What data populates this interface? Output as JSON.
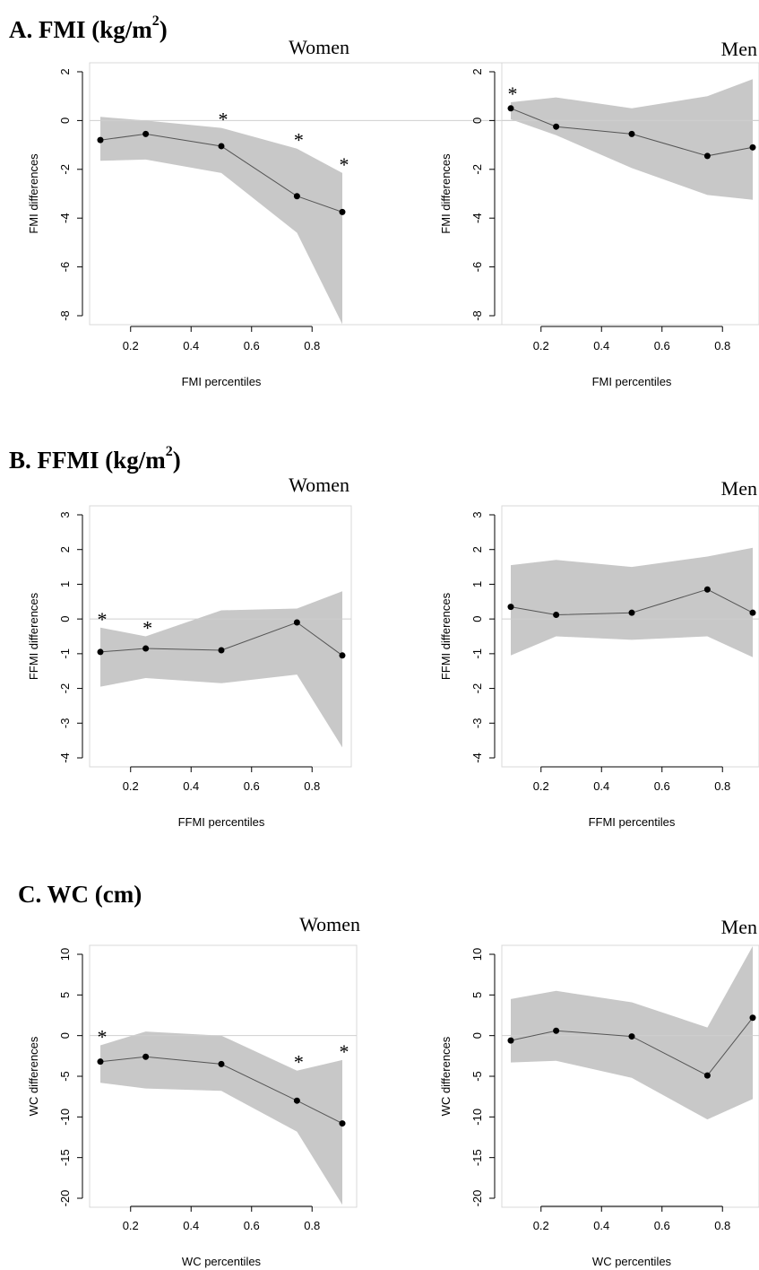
{
  "sections": [
    {
      "prefix": "A. FMI (kg/m",
      "sup": "2",
      "suffix": ")"
    },
    {
      "prefix": "B. FFMI (kg/m",
      "sup": "2",
      "suffix": ")"
    },
    {
      "prefix": "C. WC (cm)",
      "sup": "",
      "suffix": ""
    }
  ],
  "chart_data": [
    {
      "type": "line",
      "panel": "FMI-Women",
      "title": "Women",
      "xlabel": "FMI percentiles",
      "ylabel": "FMI differences",
      "xlim": [
        0.1,
        0.9
      ],
      "ylim": [
        -8,
        2
      ],
      "xticks": [
        "0.2",
        "0.4",
        "0.6",
        "0.8"
      ],
      "xtick_values": [
        0.2,
        0.4,
        0.6,
        0.8
      ],
      "yticks": [
        "2",
        "0",
        "-2",
        "-4",
        "-6",
        "-8"
      ],
      "ytick_values": [
        2,
        0,
        -2,
        -4,
        -6,
        -8
      ],
      "x": [
        0.1,
        0.25,
        0.5,
        0.75,
        0.9
      ],
      "y": [
        -0.8,
        -0.55,
        -1.05,
        -3.1,
        -3.75
      ],
      "lower": [
        -1.65,
        -1.6,
        -2.15,
        -4.6,
        -8.35
      ],
      "upper": [
        0.15,
        0.0,
        -0.3,
        -1.15,
        -2.15
      ],
      "significant": [
        false,
        false,
        true,
        true,
        true
      ],
      "star_label": "*",
      "reference_line": 0
    },
    {
      "type": "line",
      "panel": "FMI-Men",
      "title": "Men",
      "xlabel": "FMI percentiles",
      "ylabel": "FMI differences",
      "xlim": [
        0.1,
        0.9
      ],
      "ylim": [
        -8,
        2
      ],
      "xticks": [
        "0.2",
        "0.4",
        "0.6",
        "0.8"
      ],
      "xtick_values": [
        0.2,
        0.4,
        0.6,
        0.8
      ],
      "yticks": [
        "2",
        "0",
        "-2",
        "-4",
        "-6",
        "-8"
      ],
      "ytick_values": [
        2,
        0,
        -2,
        -4,
        -6,
        -8
      ],
      "x": [
        0.1,
        0.25,
        0.5,
        0.75,
        0.9
      ],
      "y": [
        0.5,
        -0.25,
        -0.55,
        -1.45,
        -1.1
      ],
      "lower": [
        0.05,
        -0.6,
        -1.95,
        -3.05,
        -3.25
      ],
      "upper": [
        0.75,
        0.95,
        0.5,
        1.0,
        1.7
      ],
      "significant": [
        true,
        false,
        false,
        false,
        false
      ],
      "star_label": "*",
      "reference_line": 0
    },
    {
      "type": "line",
      "panel": "FFMI-Women",
      "title": "Women",
      "xlabel": "FFMI percentiles",
      "ylabel": "FFMI differences",
      "xlim": [
        0.1,
        0.9
      ],
      "ylim": [
        -4,
        3
      ],
      "xticks": [
        "0.2",
        "0.4",
        "0.6",
        "0.8"
      ],
      "xtick_values": [
        0.2,
        0.4,
        0.6,
        0.8
      ],
      "yticks": [
        "3",
        "2",
        "1",
        "0",
        "-1",
        "-2",
        "-3",
        "-4"
      ],
      "ytick_values": [
        3,
        2,
        1,
        0,
        -1,
        -2,
        -3,
        -4
      ],
      "x": [
        0.1,
        0.25,
        0.5,
        0.75,
        0.9
      ],
      "y": [
        -0.95,
        -0.85,
        -0.9,
        -0.1,
        -1.05
      ],
      "lower": [
        -1.95,
        -1.7,
        -1.85,
        -1.6,
        -3.7
      ],
      "upper": [
        -0.25,
        -0.5,
        0.25,
        0.3,
        0.8
      ],
      "significant": [
        true,
        true,
        false,
        false,
        false
      ],
      "star_label": "*",
      "reference_line": 0
    },
    {
      "type": "line",
      "panel": "FFMI-Men",
      "title": "Men",
      "xlabel": "FFMI percentiles",
      "ylabel": "FFMI differences",
      "xlim": [
        0.1,
        0.9
      ],
      "ylim": [
        -4,
        3
      ],
      "xticks": [
        "0.2",
        "0.4",
        "0.6",
        "0.8"
      ],
      "xtick_values": [
        0.2,
        0.4,
        0.6,
        0.8
      ],
      "yticks": [
        "3",
        "2",
        "1",
        "0",
        "-1",
        "-2",
        "-3",
        "-4"
      ],
      "ytick_values": [
        3,
        2,
        1,
        0,
        -1,
        -2,
        -3,
        -4
      ],
      "x": [
        0.1,
        0.25,
        0.5,
        0.75,
        0.9
      ],
      "y": [
        0.35,
        0.12,
        0.18,
        0.85,
        0.18
      ],
      "lower": [
        -1.05,
        -0.5,
        -0.6,
        -0.5,
        -1.1
      ],
      "upper": [
        1.55,
        1.7,
        1.5,
        1.8,
        2.05
      ],
      "significant": [
        false,
        false,
        false,
        false,
        false
      ],
      "star_label": "*",
      "reference_line": 0
    },
    {
      "type": "line",
      "panel": "WC-Women",
      "title": "Women",
      "xlabel": "WC percentiles",
      "ylabel": "WC differences",
      "xlim": [
        0.1,
        0.9
      ],
      "ylim": [
        -20,
        10
      ],
      "xticks": [
        "0.2",
        "0.4",
        "0.6",
        "0.8"
      ],
      "xtick_values": [
        0.2,
        0.4,
        0.6,
        0.8
      ],
      "yticks": [
        "10",
        "5",
        "0",
        "-5",
        "-10",
        "-15",
        "-20"
      ],
      "ytick_values": [
        10,
        5,
        0,
        -5,
        -10,
        -15,
        -20
      ],
      "x": [
        0.1,
        0.25,
        0.5,
        0.75,
        0.9
      ],
      "y": [
        -3.2,
        -2.6,
        -3.5,
        -8.0,
        -10.8
      ],
      "lower": [
        -5.8,
        -6.5,
        -6.8,
        -11.8,
        -20.8
      ],
      "upper": [
        -1.2,
        0.5,
        0.0,
        -4.3,
        -3.0
      ],
      "significant": [
        true,
        false,
        false,
        true,
        true
      ],
      "star_label": "*",
      "reference_line": 0
    },
    {
      "type": "line",
      "panel": "WC-Men",
      "title": "Men",
      "xlabel": "WC percentiles",
      "ylabel": "WC differences",
      "xlim": [
        0.1,
        0.9
      ],
      "ylim": [
        -20,
        10
      ],
      "xticks": [
        "0.2",
        "0.4",
        "0.6",
        "0.8"
      ],
      "xtick_values": [
        0.2,
        0.4,
        0.6,
        0.8
      ],
      "yticks": [
        "10",
        "5",
        "0",
        "-5",
        "-10",
        "-15",
        "-20"
      ],
      "ytick_values": [
        10,
        5,
        0,
        -5,
        -10,
        -15,
        -20
      ],
      "x": [
        0.1,
        0.25,
        0.5,
        0.75,
        0.9
      ],
      "y": [
        -0.6,
        0.6,
        -0.1,
        -4.9,
        2.2
      ],
      "lower": [
        -3.3,
        -3.1,
        -5.2,
        -10.3,
        -7.8
      ],
      "upper": [
        4.5,
        5.5,
        4.1,
        1.0,
        11.0
      ],
      "significant": [
        false,
        false,
        false,
        false,
        false
      ],
      "star_label": "*",
      "reference_line": 0
    }
  ]
}
